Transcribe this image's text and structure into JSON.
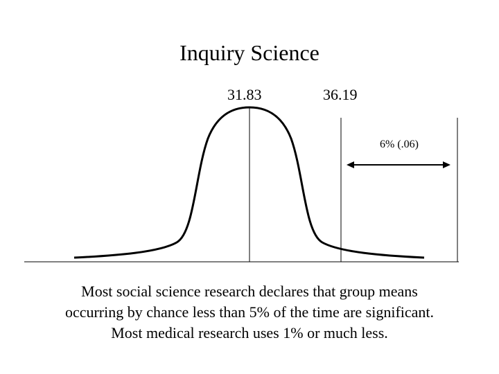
{
  "title": "Inquiry Science",
  "markers": {
    "mean_label": "31.83",
    "score_label": "36.19",
    "tail_label": "6% (.06)"
  },
  "caption": {
    "line1": "Most social science research declares that group means",
    "line2": "occurring by chance less than 5% of the time are significant.",
    "line3": "Most medical research uses 1% or much less."
  },
  "colors": {
    "ink": "#000000",
    "background": "#ffffff"
  }
}
